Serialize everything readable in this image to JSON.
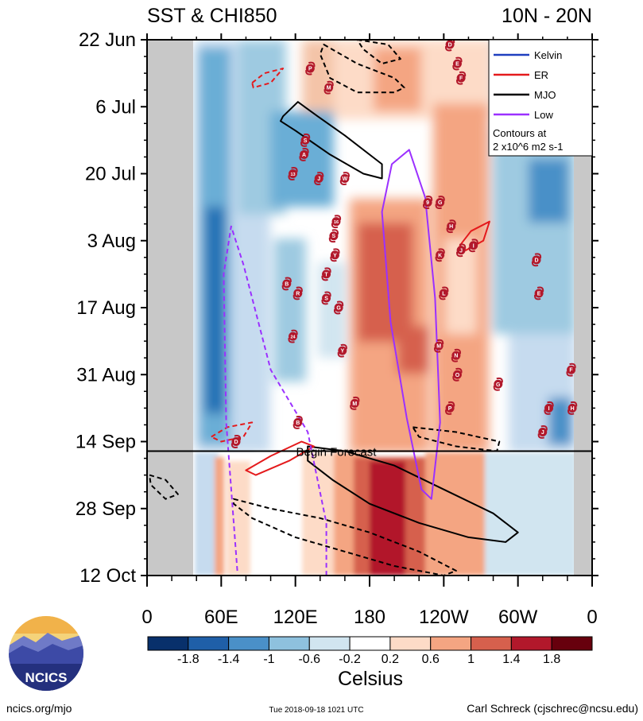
{
  "title_left": "SST & CHI850",
  "title_right": "10N - 20N",
  "footer": {
    "url": "ncics.org/mjo",
    "timestamp": "Tue 2018-09-18 1021 UTC",
    "author": "Carl Schreck (cjschrec@ncsu.edu)",
    "logo_text": "NCICS"
  },
  "colors": {
    "cool_dark": "#08306b",
    "warm_dark": "#67000d",
    "kelvin": "#1f3fbf",
    "er": "#e41a1c",
    "mjo": "#000000",
    "low": "#9b30ff",
    "land_mask": "#c8c8c8",
    "forecast_shade": "#cfe3f3",
    "storm_marker": "#b2182b"
  },
  "chart_data": {
    "type": "heatmap",
    "title": "SST & CHI850",
    "region": "10N - 20N",
    "xlabel": "",
    "ylabel": "",
    "x_ticks": [
      "0",
      "60E",
      "120E",
      "180",
      "120W",
      "60W",
      "0"
    ],
    "x_range_deg_east": [
      0,
      360
    ],
    "y_ticks": [
      "22 Jun",
      "6 Jul",
      "20 Jul",
      "3 Aug",
      "17 Aug",
      "31 Aug",
      "14 Sep",
      "28 Sep",
      "12 Oct"
    ],
    "y_range": [
      "2018-06-22",
      "2018-10-12"
    ],
    "forecast_start_date": "2018-09-16",
    "forecast_label": "Begin Forecast",
    "colorbar": {
      "label": "Celsius",
      "tick_labels": [
        "-1.8",
        "-1.4",
        "-1",
        "-0.6",
        "-0.2",
        "0.2",
        "0.6",
        "1",
        "1.4",
        "1.8"
      ],
      "colors": [
        "#08306b",
        "#1f5fa8",
        "#4a90c8",
        "#8ec1de",
        "#d1e5f0",
        "#ffffff",
        "#fddbc7",
        "#f4a582",
        "#d6604d",
        "#b2182b",
        "#67000d"
      ]
    },
    "legend": {
      "placement": "top-right",
      "entries": [
        "Kelvin",
        "ER",
        "MJO",
        "Low"
      ],
      "note_lines": [
        "Contours at",
        "2 x10^6 m2 s-1"
      ]
    },
    "storms": [
      {
        "label": "D",
        "lon": 245,
        "date": "2018-06-23"
      },
      {
        "label": "E",
        "lon": 251,
        "date": "2018-06-27"
      },
      {
        "label": "F",
        "lon": 254,
        "date": "2018-06-30"
      },
      {
        "label": "P",
        "lon": 132,
        "date": "2018-06-28"
      },
      {
        "label": "M",
        "lon": 147,
        "date": "2018-07-02"
      },
      {
        "label": "S",
        "lon": 128,
        "date": "2018-07-13"
      },
      {
        "label": "A",
        "lon": 127,
        "date": "2018-07-16"
      },
      {
        "label": "13",
        "lon": 118,
        "date": "2018-07-20"
      },
      {
        "label": "J",
        "lon": 139,
        "date": "2018-07-21"
      },
      {
        "label": "W",
        "lon": 160,
        "date": "2018-07-21"
      },
      {
        "label": "9",
        "lon": 227,
        "date": "2018-07-26"
      },
      {
        "label": "G",
        "lon": 237,
        "date": "2018-07-26"
      },
      {
        "label": "16",
        "lon": 153,
        "date": "2018-07-30"
      },
      {
        "label": "H",
        "lon": 246,
        "date": "2018-07-31"
      },
      {
        "label": "S",
        "lon": 151,
        "date": "2018-08-02"
      },
      {
        "label": "I",
        "lon": 264,
        "date": "2018-08-04"
      },
      {
        "label": "J",
        "lon": 254,
        "date": "2018-08-05"
      },
      {
        "label": "Y",
        "lon": 152,
        "date": "2018-08-06"
      },
      {
        "label": "K",
        "lon": 237,
        "date": "2018-08-06"
      },
      {
        "label": "D",
        "lon": 315,
        "date": "2018-08-07"
      },
      {
        "label": "T",
        "lon": 145,
        "date": "2018-08-10"
      },
      {
        "label": "B",
        "lon": 113,
        "date": "2018-08-12"
      },
      {
        "label": "R",
        "lon": 122,
        "date": "2018-08-14"
      },
      {
        "label": "S",
        "lon": 145,
        "date": "2018-08-15"
      },
      {
        "label": "L",
        "lon": 240,
        "date": "2018-08-14"
      },
      {
        "label": "E",
        "lon": 317,
        "date": "2018-08-14"
      },
      {
        "label": "G",
        "lon": 155,
        "date": "2018-08-17"
      },
      {
        "label": "24",
        "lon": 118,
        "date": "2018-08-23"
      },
      {
        "label": "M",
        "lon": 236,
        "date": "2018-08-25"
      },
      {
        "label": "Y",
        "lon": 158,
        "date": "2018-08-26"
      },
      {
        "label": "N",
        "lon": 250,
        "date": "2018-08-27"
      },
      {
        "label": "F",
        "lon": 343,
        "date": "2018-08-30"
      },
      {
        "label": "O",
        "lon": 251,
        "date": "2018-08-31"
      },
      {
        "label": "G",
        "lon": 284,
        "date": "2018-09-02"
      },
      {
        "label": "M",
        "lon": 168,
        "date": "2018-09-06"
      },
      {
        "label": "P",
        "lon": 245,
        "date": "2018-09-07"
      },
      {
        "label": "H",
        "lon": 344,
        "date": "2018-09-07"
      },
      {
        "label": "I",
        "lon": 325,
        "date": "2018-09-07"
      },
      {
        "label": "B",
        "lon": 122,
        "date": "2018-09-10"
      },
      {
        "label": "J",
        "lon": 320,
        "date": "2018-09-12"
      },
      {
        "label": "D",
        "lon": 72,
        "date": "2018-09-14"
      }
    ],
    "series": [
      {
        "name": "MJO",
        "style": "solid",
        "points": [
          [
            110,
            "2018-07-08"
          ],
          [
            122,
            "2018-07-05"
          ],
          [
            138,
            "2018-07-08"
          ],
          [
            160,
            "2018-07-12"
          ],
          [
            190,
            "2018-07-18"
          ],
          [
            190,
            "2018-07-21"
          ],
          [
            175,
            "2018-07-20"
          ],
          [
            148,
            "2018-07-16"
          ],
          [
            120,
            "2018-07-11"
          ],
          [
            108,
            "2018-07-09"
          ],
          [
            110,
            "2018-07-08"
          ]
        ]
      },
      {
        "name": "MJO",
        "style": "solid",
        "points": [
          [
            130,
            "2018-09-15"
          ],
          [
            160,
            "2018-09-16"
          ],
          [
            200,
            "2018-09-19"
          ],
          [
            240,
            "2018-09-24"
          ],
          [
            280,
            "2018-09-29"
          ],
          [
            300,
            "2018-10-03"
          ],
          [
            290,
            "2018-10-05"
          ],
          [
            260,
            "2018-10-04"
          ],
          [
            220,
            "2018-10-01"
          ],
          [
            180,
            "2018-09-27"
          ],
          [
            150,
            "2018-09-22"
          ],
          [
            130,
            "2018-09-18"
          ],
          [
            130,
            "2018-09-15"
          ]
        ]
      },
      {
        "name": "MJO",
        "style": "dashed",
        "points": [
          [
            143,
            "2018-06-23"
          ],
          [
            170,
            "2018-06-27"
          ],
          [
            200,
            "2018-06-30"
          ],
          [
            208,
            "2018-07-02"
          ],
          [
            200,
            "2018-07-03"
          ],
          [
            170,
            "2018-07-03"
          ],
          [
            148,
            "2018-06-30"
          ],
          [
            140,
            "2018-06-25"
          ],
          [
            143,
            "2018-06-23"
          ]
        ]
      },
      {
        "name": "MJO",
        "style": "dashed",
        "points": [
          [
            170,
            "2018-06-22"
          ],
          [
            195,
            "2018-06-23"
          ],
          [
            205,
            "2018-06-26"
          ],
          [
            190,
            "2018-06-27"
          ],
          [
            175,
            "2018-06-24"
          ],
          [
            170,
            "2018-06-22"
          ]
        ]
      },
      {
        "name": "MJO",
        "style": "dashed",
        "points": [
          [
            70,
            "2018-09-26"
          ],
          [
            100,
            "2018-09-28"
          ],
          [
            140,
            "2018-09-30"
          ],
          [
            180,
            "2018-10-03"
          ],
          [
            220,
            "2018-10-07"
          ],
          [
            250,
            "2018-10-11"
          ],
          [
            240,
            "2018-10-12"
          ],
          [
            200,
            "2018-10-10"
          ],
          [
            160,
            "2018-10-07"
          ],
          [
            120,
            "2018-10-04"
          ],
          [
            85,
            "2018-09-30"
          ],
          [
            70,
            "2018-09-27"
          ],
          [
            70,
            "2018-09-26"
          ]
        ]
      },
      {
        "name": "MJO",
        "style": "dashed",
        "points": [
          [
            2,
            "2018-09-21"
          ],
          [
            15,
            "2018-09-22"
          ],
          [
            25,
            "2018-09-25"
          ],
          [
            15,
            "2018-09-26"
          ],
          [
            3,
            "2018-09-23"
          ],
          [
            2,
            "2018-09-21"
          ]
        ]
      },
      {
        "name": "MJO",
        "style": "dashed",
        "points": [
          [
            215,
            "2018-09-11"
          ],
          [
            250,
            "2018-09-12"
          ],
          [
            285,
            "2018-09-14"
          ],
          [
            283,
            "2018-09-16"
          ],
          [
            250,
            "2018-09-15"
          ],
          [
            220,
            "2018-09-13"
          ],
          [
            215,
            "2018-09-11"
          ]
        ]
      },
      {
        "name": "ER",
        "style": "dashed",
        "points": [
          [
            85,
            "2018-07-01"
          ],
          [
            95,
            "2018-06-29"
          ],
          [
            110,
            "2018-06-28"
          ],
          [
            100,
            "2018-07-01"
          ],
          [
            86,
            "2018-07-02"
          ],
          [
            85,
            "2018-07-01"
          ]
        ]
      },
      {
        "name": "ER",
        "style": "dashed",
        "points": [
          [
            52,
            "2018-09-13"
          ],
          [
            65,
            "2018-09-11"
          ],
          [
            85,
            "2018-09-10"
          ],
          [
            78,
            "2018-09-13"
          ],
          [
            60,
            "2018-09-14"
          ],
          [
            52,
            "2018-09-13"
          ]
        ]
      },
      {
        "name": "ER",
        "style": "solid",
        "points": [
          [
            80,
            "2018-09-20"
          ],
          [
            100,
            "2018-09-17"
          ],
          [
            125,
            "2018-09-14"
          ],
          [
            135,
            "2018-09-15"
          ],
          [
            115,
            "2018-09-18"
          ],
          [
            88,
            "2018-09-21"
          ],
          [
            80,
            "2018-09-20"
          ]
        ]
      },
      {
        "name": "ER",
        "style": "solid",
        "points": [
          [
            253,
            "2018-08-04"
          ],
          [
            262,
            "2018-08-01"
          ],
          [
            277,
            "2018-07-30"
          ],
          [
            272,
            "2018-08-03"
          ],
          [
            258,
            "2018-08-05"
          ],
          [
            253,
            "2018-08-04"
          ]
        ]
      },
      {
        "name": "Low",
        "style": "solid",
        "points": [
          [
            210,
            "2018-09-09"
          ],
          [
            197,
            "2018-08-20"
          ],
          [
            190,
            "2018-07-28"
          ],
          [
            198,
            "2018-07-18"
          ],
          [
            212,
            "2018-07-15"
          ],
          [
            225,
            "2018-07-25"
          ],
          [
            233,
            "2018-08-15"
          ],
          [
            237,
            "2018-09-10"
          ],
          [
            230,
            "2018-09-26"
          ],
          [
            222,
            "2018-09-24"
          ],
          [
            210,
            "2018-09-09"
          ]
        ]
      },
      {
        "name": "Low",
        "style": "dashed",
        "points": [
          [
            73,
            "2018-10-11"
          ],
          [
            64,
            "2018-09-10"
          ],
          [
            62,
            "2018-08-10"
          ],
          [
            68,
            "2018-07-31"
          ],
          [
            78,
            "2018-08-08"
          ],
          [
            100,
            "2018-08-30"
          ],
          [
            130,
            "2018-09-12"
          ],
          [
            145,
            "2018-10-01"
          ],
          [
            145,
            "2018-10-12"
          ]
        ]
      }
    ]
  }
}
